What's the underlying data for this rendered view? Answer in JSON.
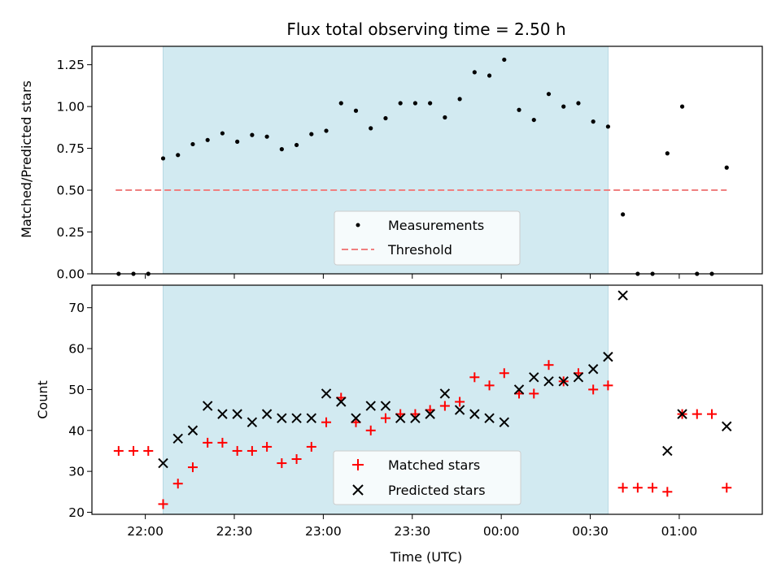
{
  "chart_data": [
    {
      "type": "scatter",
      "title": "Flux total observing time = 2.50 h",
      "ylabel": "Matched/Predicted stars",
      "xlabel": "",
      "ylim": [
        0,
        1.36
      ],
      "yticks": [
        "0.00",
        "0.25",
        "0.50",
        "0.75",
        "1.00",
        "1.25"
      ],
      "shaded_span": [
        "22:06",
        "00:36"
      ],
      "threshold": {
        "name": "Threshold",
        "value": 0.5,
        "x_range": [
          "21:50",
          "01:16"
        ],
        "color": "#f08080"
      },
      "series": [
        {
          "name": "Measurements",
          "color": "#000000",
          "x": [
            "21:51",
            "21:56",
            "22:01",
            "22:06",
            "22:11",
            "22:16",
            "22:21",
            "22:26",
            "22:31",
            "22:36",
            "22:41",
            "22:46",
            "22:51",
            "22:56",
            "23:01",
            "23:06",
            "23:11",
            "23:16",
            "23:21",
            "23:26",
            "23:31",
            "23:36",
            "23:41",
            "23:46",
            "23:51",
            "23:56",
            "00:01",
            "00:06",
            "00:11",
            "00:16",
            "00:21",
            "00:26",
            "00:31",
            "00:36",
            "00:41",
            "00:46",
            "00:51",
            "00:56",
            "01:01",
            "01:06",
            "01:11",
            "01:16"
          ],
          "y": [
            0,
            0,
            0,
            0.69,
            0.71,
            0.775,
            0.8,
            0.84,
            0.79,
            0.83,
            0.82,
            0.745,
            0.77,
            0.835,
            0.855,
            1.02,
            0.975,
            0.87,
            0.93,
            1.02,
            1.02,
            1.02,
            0.935,
            1.045,
            1.205,
            1.185,
            1.28,
            0.98,
            0.92,
            1.075,
            1.0,
            1.02,
            0.91,
            0.88,
            0.355,
            0,
            0,
            0.72,
            1.0,
            0,
            0,
            0.635
          ]
        }
      ]
    },
    {
      "type": "scatter",
      "title": "",
      "ylabel": "Count",
      "xlabel": "Time (UTC)",
      "ylim": [
        19.5,
        75.5
      ],
      "yticks": [
        "20",
        "30",
        "40",
        "50",
        "60",
        "70"
      ],
      "xticks": [
        "22:00",
        "22:30",
        "23:00",
        "23:30",
        "00:00",
        "00:30",
        "01:00"
      ],
      "x_start": "21:42",
      "x_end": "01:28",
      "shaded_span": [
        "22:06",
        "00:36"
      ],
      "series": [
        {
          "name": "Matched stars",
          "marker": "+",
          "color": "#ff0000",
          "x": [
            "21:51",
            "21:56",
            "22:01",
            "22:06",
            "22:11",
            "22:16",
            "22:21",
            "22:26",
            "22:31",
            "22:36",
            "22:41",
            "22:46",
            "22:51",
            "22:56",
            "23:01",
            "23:06",
            "23:11",
            "23:16",
            "23:21",
            "23:26",
            "23:31",
            "23:36",
            "23:41",
            "23:46",
            "23:51",
            "23:56",
            "00:01",
            "00:06",
            "00:11",
            "00:16",
            "00:21",
            "00:26",
            "00:31",
            "00:36",
            "00:41",
            "00:46",
            "00:51",
            "00:56",
            "01:01",
            "01:06",
            "01:11",
            "01:16"
          ],
          "y": [
            35,
            35,
            35,
            22,
            27,
            31,
            37,
            37,
            35,
            35,
            36,
            32,
            33,
            36,
            42,
            48,
            42,
            40,
            43,
            44,
            44,
            45,
            46,
            47,
            53,
            51,
            54,
            49,
            49,
            56,
            52,
            54,
            50,
            51,
            26,
            26,
            26,
            25,
            44,
            44,
            44,
            26
          ]
        },
        {
          "name": "Predicted stars",
          "marker": "x",
          "color": "#000000",
          "x": [
            "22:06",
            "22:11",
            "22:16",
            "22:21",
            "22:26",
            "22:31",
            "22:36",
            "22:41",
            "22:46",
            "22:51",
            "22:56",
            "23:01",
            "23:06",
            "23:11",
            "23:16",
            "23:21",
            "23:26",
            "23:31",
            "23:36",
            "23:41",
            "23:46",
            "23:51",
            "23:56",
            "00:01",
            "00:06",
            "00:11",
            "00:16",
            "00:21",
            "00:26",
            "00:31",
            "00:36",
            "00:41",
            "00:56",
            "01:01",
            "01:16"
          ],
          "y": [
            32,
            38,
            40,
            46,
            44,
            44,
            42,
            44,
            43,
            43,
            43,
            49,
            47,
            43,
            46,
            46,
            43,
            43,
            44,
            49,
            45,
            44,
            43,
            42,
            50,
            53,
            52,
            52,
            53,
            55,
            58,
            73,
            35,
            44,
            41
          ]
        }
      ]
    }
  ]
}
